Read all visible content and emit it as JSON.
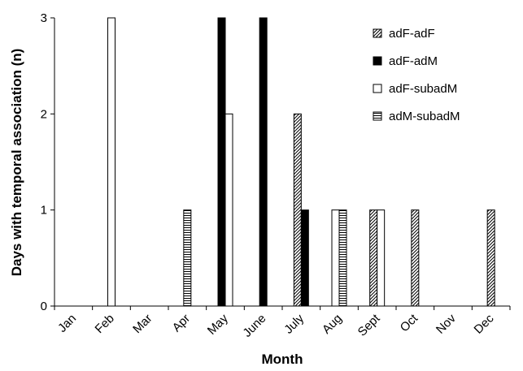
{
  "chart_data": {
    "type": "bar",
    "categories": [
      "Jan",
      "Feb",
      "Mar",
      "Apr",
      "May",
      "June",
      "July",
      "Aug",
      "Sept",
      "Oct",
      "Nov",
      "Dec"
    ],
    "series": [
      {
        "name": "adF-adF",
        "values": [
          0,
          0,
          0,
          0,
          0,
          0,
          2,
          0,
          1,
          1,
          0,
          1
        ]
      },
      {
        "name": "adF-adM",
        "values": [
          0,
          0,
          0,
          0,
          3,
          3,
          1,
          0,
          0,
          0,
          0,
          0
        ]
      },
      {
        "name": "adF-subadM",
        "values": [
          0,
          3,
          0,
          0,
          2,
          0,
          0,
          1,
          1,
          0,
          0,
          0
        ]
      },
      {
        "name": "adM-subadM",
        "values": [
          0,
          0,
          0,
          1,
          0,
          0,
          0,
          1,
          0,
          0,
          0,
          0
        ]
      }
    ],
    "xlabel": "Month",
    "ylabel": "Days with temporal association (n)",
    "ylim": [
      0,
      3
    ],
    "yticks": [
      0,
      1,
      2,
      3
    ],
    "legend_position": "top-right",
    "grid": false
  }
}
